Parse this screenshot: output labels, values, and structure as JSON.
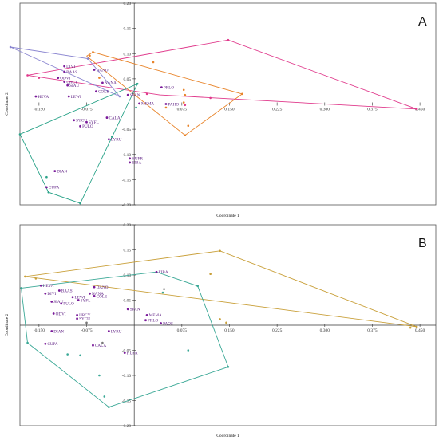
{
  "chart_data": [
    {
      "type": "scatter",
      "panel_label": "A",
      "xlabel": "Coordinate 1",
      "ylabel": "Coordinate 2",
      "xlim": [
        -0.18,
        0.475
      ],
      "ylim": [
        -0.2,
        0.2
      ],
      "xticks": [
        "-0.150",
        "-0.075",
        "0.075",
        "0.150",
        "0.225",
        "0.300",
        "0.375",
        "0.450"
      ],
      "xtick_values": [
        -0.15,
        -0.075,
        0.075,
        0.15,
        0.225,
        0.3,
        0.375,
        0.45
      ],
      "yticks": [
        "0.20",
        "0.15",
        "0.10",
        "0.05",
        "-0.05",
        "-0.10",
        "-0.15",
        "-0.20"
      ],
      "ytick_values": [
        0.2,
        0.15,
        0.1,
        0.05,
        -0.05,
        -0.1,
        -0.15,
        -0.2
      ],
      "colors": {
        "labeled": "#7a1a9a",
        "magenta": "#e03a8c",
        "orange": "#e8842a",
        "teal": "#2aa389",
        "lavender": "#8a85d0"
      },
      "labeled_points": [
        {
          "label": "DIVI",
          "x": -0.11,
          "y": 0.075
        },
        {
          "label": "DANO",
          "x": -0.063,
          "y": 0.068
        },
        {
          "label": "BAAS",
          "x": -0.11,
          "y": 0.064
        },
        {
          "label": "ODVI",
          "x": -0.12,
          "y": 0.052
        },
        {
          "label": "URCY",
          "x": -0.11,
          "y": 0.044
        },
        {
          "label": "NANA",
          "x": -0.05,
          "y": 0.042
        },
        {
          "label": "SIAU",
          "x": -0.105,
          "y": 0.037
        },
        {
          "label": "PRLO",
          "x": 0.043,
          "y": 0.033
        },
        {
          "label": "COLE",
          "x": -0.06,
          "y": 0.025
        },
        {
          "label": "SPAN",
          "x": -0.01,
          "y": 0.018
        },
        {
          "label": "HEVA",
          "x": -0.155,
          "y": 0.015
        },
        {
          "label": "LEWI",
          "x": -0.103,
          "y": 0.015
        },
        {
          "label": "MEMA",
          "x": 0.008,
          "y": 0.001
        },
        {
          "label": "PAHO",
          "x": 0.05,
          "y": 0.0
        },
        {
          "label": "CALA",
          "x": -0.043,
          "y": -0.027
        },
        {
          "label": "SYCU",
          "x": -0.095,
          "y": -0.032
        },
        {
          "label": "SYFL",
          "x": -0.075,
          "y": -0.036
        },
        {
          "label": "PULO",
          "x": -0.085,
          "y": -0.044
        },
        {
          "label": "LYRU",
          "x": -0.04,
          "y": -0.07
        },
        {
          "label": "HUFR",
          "x": -0.007,
          "y": -0.108
        },
        {
          "label": "EIBA",
          "x": -0.007,
          "y": -0.116
        },
        {
          "label": "DIAN",
          "x": -0.125,
          "y": -0.133
        },
        {
          "label": "CUPA",
          "x": -0.138,
          "y": -0.165
        }
      ],
      "groups": [
        {
          "color": "magenta",
          "hull": [
            [
              -0.168,
              0.057
            ],
            [
              0.148,
              0.127
            ],
            [
              0.445,
              -0.01
            ],
            [
              0.04,
              0.018
            ],
            [
              -0.168,
              0.057
            ]
          ],
          "points": [
            [
              -0.168,
              0.057
            ],
            [
              0.148,
              0.127
            ],
            [
              0.445,
              -0.01
            ],
            [
              -0.15,
              0.052
            ],
            [
              0.02,
              0.02
            ],
            [
              0.08,
              0.017
            ],
            [
              0.12,
              0.012
            ],
            [
              0.08,
              -0.002
            ]
          ]
        },
        {
          "color": "orange",
          "hull": [
            [
              -0.075,
              0.095
            ],
            [
              -0.065,
              0.103
            ],
            [
              0.17,
              0.02
            ],
            [
              0.08,
              -0.062
            ],
            [
              -0.075,
              0.095
            ]
          ],
          "points": [
            [
              -0.065,
              0.103
            ],
            [
              -0.07,
              0.096
            ],
            [
              0.03,
              0.083
            ],
            [
              0.17,
              0.02
            ],
            [
              0.08,
              -0.062
            ],
            [
              0.085,
              -0.043
            ],
            [
              0.08,
              0.018
            ],
            [
              0.078,
              0.003
            ],
            [
              0.078,
              0.028
            ],
            [
              -0.055,
              0.052
            ],
            [
              0.05,
              -0.007
            ]
          ]
        },
        {
          "color": "teal",
          "hull": [
            [
              -0.18,
              -0.06
            ],
            [
              -0.135,
              -0.175
            ],
            [
              -0.085,
              -0.197
            ],
            [
              0.005,
              0.04
            ],
            [
              -0.18,
              -0.06
            ]
          ],
          "points": [
            [
              -0.18,
              -0.06
            ],
            [
              -0.135,
              -0.175
            ],
            [
              -0.085,
              -0.197
            ],
            [
              0.005,
              0.04
            ],
            [
              -0.035,
              -0.065
            ],
            [
              -0.138,
              -0.145
            ],
            [
              0.003,
              -0.007
            ]
          ]
        },
        {
          "color": "lavender",
          "hull": [
            [
              -0.195,
              0.113
            ],
            [
              -0.073,
              0.09
            ],
            [
              -0.023,
              0.015
            ],
            [
              -0.195,
              0.113
            ]
          ],
          "points": [
            [
              -0.195,
              0.113
            ],
            [
              -0.073,
              0.09
            ],
            [
              -0.023,
              0.015
            ]
          ]
        }
      ]
    },
    {
      "type": "scatter",
      "panel_label": "B",
      "xlabel": "Coordinate 1",
      "ylabel": "Coordinate 2",
      "xlim": [
        -0.18,
        0.475
      ],
      "ylim": [
        -0.2,
        0.2
      ],
      "xticks": [
        "-0.150",
        "-0.075",
        "0.075",
        "0.150",
        "0.225",
        "0.300",
        "0.375",
        "0.450"
      ],
      "xtick_values": [
        -0.15,
        -0.075,
        0.075,
        0.15,
        0.225,
        0.3,
        0.375,
        0.45
      ],
      "yticks": [
        "0.20",
        "0.15",
        "0.10",
        "0.05",
        "-0.05",
        "-0.10",
        "-0.15",
        "-0.20"
      ],
      "ytick_values": [
        0.2,
        0.15,
        0.1,
        0.05,
        -0.05,
        -0.1,
        -0.15,
        -0.2
      ],
      "colors": {
        "labeled": "#7a1a9a",
        "gold": "#c9a03a",
        "teal": "#3aa896",
        "gray": "#777777"
      },
      "labeled_points": [
        {
          "label": "EIBA",
          "x": 0.035,
          "y": 0.106
        },
        {
          "label": "HEVA",
          "x": -0.147,
          "y": 0.079
        },
        {
          "label": "DANO",
          "x": -0.063,
          "y": 0.076
        },
        {
          "label": "BAAS",
          "x": -0.118,
          "y": 0.069
        },
        {
          "label": "NANA",
          "x": -0.07,
          "y": 0.063
        },
        {
          "label": "DIVI",
          "x": -0.14,
          "y": 0.063
        },
        {
          "label": "COLE",
          "x": -0.063,
          "y": 0.058
        },
        {
          "label": "LEWI",
          "x": -0.097,
          "y": 0.056
        },
        {
          "label": "SYFL",
          "x": -0.088,
          "y": 0.05
        },
        {
          "label": "SIAU",
          "x": -0.13,
          "y": 0.047
        },
        {
          "label": "PULO",
          "x": -0.115,
          "y": 0.043
        },
        {
          "label": "SPAN",
          "x": -0.01,
          "y": 0.032
        },
        {
          "label": "ODVI",
          "x": -0.127,
          "y": 0.023
        },
        {
          "label": "URCY",
          "x": -0.09,
          "y": 0.02
        },
        {
          "label": "MEMA",
          "x": 0.02,
          "y": 0.02
        },
        {
          "label": "SYCU",
          "x": -0.09,
          "y": 0.013
        },
        {
          "label": "PRLO",
          "x": 0.018,
          "y": 0.01
        },
        {
          "label": "PAOS",
          "x": 0.042,
          "y": 0.004
        },
        {
          "label": "DIAN",
          "x": -0.13,
          "y": -0.012
        },
        {
          "label": "LYRU",
          "x": -0.04,
          "y": -0.012
        },
        {
          "label": "CUPA",
          "x": -0.14,
          "y": -0.037
        },
        {
          "label": "CALA",
          "x": -0.065,
          "y": -0.04
        },
        {
          "label": "HUFR",
          "x": -0.015,
          "y": -0.055
        }
      ],
      "groups": [
        {
          "color": "gold",
          "hull": [
            [
              -0.172,
              0.097
            ],
            [
              0.135,
              0.148
            ],
            [
              0.445,
              -0.003
            ],
            [
              -0.172,
              0.097
            ]
          ],
          "points": [
            [
              -0.172,
              0.097
            ],
            [
              0.135,
              0.148
            ],
            [
              0.445,
              -0.003
            ],
            [
              -0.155,
              0.093
            ],
            [
              0.12,
              0.102
            ],
            [
              0.135,
              0.012
            ],
            [
              0.145,
              0.005
            ],
            [
              0.435,
              -0.005
            ]
          ]
        },
        {
          "color": "teal",
          "hull": [
            [
              -0.178,
              0.074
            ],
            [
              0.035,
              0.106
            ],
            [
              0.1,
              0.078
            ],
            [
              0.148,
              -0.083
            ],
            [
              -0.04,
              -0.163
            ],
            [
              -0.168,
              -0.035
            ],
            [
              -0.178,
              0.074
            ]
          ],
          "points": [
            [
              0.1,
              0.078
            ],
            [
              0.148,
              -0.083
            ],
            [
              -0.04,
              -0.163
            ],
            [
              -0.168,
              -0.035
            ],
            [
              -0.178,
              0.074
            ],
            [
              0.045,
              0.065
            ],
            [
              0.085,
              -0.05
            ],
            [
              -0.105,
              -0.058
            ],
            [
              -0.085,
              -0.06
            ],
            [
              -0.055,
              -0.1
            ],
            [
              -0.047,
              -0.142
            ]
          ]
        },
        {
          "color": "gray",
          "hull": [],
          "points": [
            [
              0.047,
              0.072
            ],
            [
              -0.075,
              0.005
            ],
            [
              -0.05,
              -0.035
            ]
          ]
        }
      ]
    }
  ]
}
